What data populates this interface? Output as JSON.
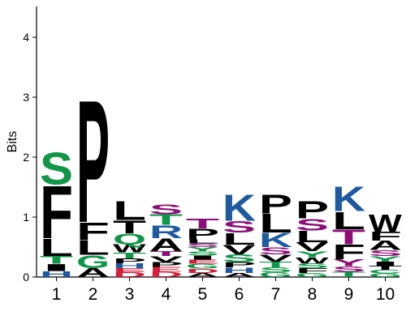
{
  "chart_data": {
    "type": "sequence-logo",
    "ylabel": "Bits",
    "ylim": [
      0,
      4.5
    ],
    "yticks": [
      "0",
      "1",
      "2",
      "3",
      "4"
    ],
    "grid": false,
    "colors": {
      "green": "#109648",
      "black": "#000000",
      "blue": "#1f5aa0",
      "purple": "#8e0e77",
      "red": "#d41e3c"
    },
    "positions": [
      {
        "label": "1",
        "letters": [
          {
            "char": "H",
            "height": 0.1,
            "color": "blue"
          },
          {
            "char": "I",
            "height": 0.12,
            "color": "black"
          },
          {
            "char": "T",
            "height": 0.13,
            "color": "green"
          },
          {
            "char": "L",
            "height": 0.3,
            "color": "black"
          },
          {
            "char": "F",
            "height": 0.9,
            "color": "black"
          },
          {
            "char": "S",
            "height": 0.55,
            "color": "green"
          }
        ]
      },
      {
        "label": "2",
        "letters": [
          {
            "char": "A",
            "height": 0.15,
            "color": "black"
          },
          {
            "char": "G",
            "height": 0.22,
            "color": "green"
          },
          {
            "char": "L",
            "height": 0.25,
            "color": "black"
          },
          {
            "char": "F",
            "height": 0.3,
            "color": "black"
          },
          {
            "char": "P",
            "height": 2.1,
            "color": "black"
          }
        ]
      },
      {
        "label": "3",
        "letters": [
          {
            "char": "D",
            "height": 0.08,
            "color": "red"
          },
          {
            "char": "E",
            "height": 0.07,
            "color": "red"
          },
          {
            "char": "H",
            "height": 0.08,
            "color": "blue"
          },
          {
            "char": "P",
            "height": 0.08,
            "color": "black"
          },
          {
            "char": "T",
            "height": 0.1,
            "color": "green"
          },
          {
            "char": "W",
            "height": 0.14,
            "color": "black"
          },
          {
            "char": "Q",
            "height": 0.18,
            "color": "green"
          },
          {
            "char": "T",
            "height": 0.22,
            "color": "black"
          },
          {
            "char": "L",
            "height": 0.32,
            "color": "black"
          }
        ]
      },
      {
        "label": "4",
        "letters": [
          {
            "char": "D",
            "height": 0.09,
            "color": "red"
          },
          {
            "char": "E",
            "height": 0.08,
            "color": "red"
          },
          {
            "char": "P",
            "height": 0.08,
            "color": "black"
          },
          {
            "char": "V",
            "height": 0.1,
            "color": "black"
          },
          {
            "char": "T",
            "height": 0.08,
            "color": "purple"
          },
          {
            "char": "A",
            "height": 0.22,
            "color": "black"
          },
          {
            "char": "R",
            "height": 0.22,
            "color": "blue"
          },
          {
            "char": "T",
            "height": 0.18,
            "color": "green"
          },
          {
            "char": "S",
            "height": 0.17,
            "color": "purple"
          }
        ]
      },
      {
        "label": "5",
        "letters": [
          {
            "char": "A",
            "height": 0.07,
            "color": "black"
          },
          {
            "char": "D",
            "height": 0.07,
            "color": "red"
          },
          {
            "char": "G",
            "height": 0.08,
            "color": "green"
          },
          {
            "char": "E",
            "height": 0.07,
            "color": "red"
          },
          {
            "char": "I",
            "height": 0.07,
            "color": "black"
          },
          {
            "char": "S",
            "height": 0.07,
            "color": "green"
          },
          {
            "char": "Y",
            "height": 0.07,
            "color": "green"
          },
          {
            "char": "S",
            "height": 0.06,
            "color": "purple"
          },
          {
            "char": "L",
            "height": 0.07,
            "color": "black"
          },
          {
            "char": "P",
            "height": 0.18,
            "color": "black"
          },
          {
            "char": "T",
            "height": 0.17,
            "color": "purple"
          }
        ]
      },
      {
        "label": "6",
        "letters": [
          {
            "char": "A",
            "height": 0.07,
            "color": "black"
          },
          {
            "char": "H",
            "height": 0.09,
            "color": "blue"
          },
          {
            "char": "P",
            "height": 0.09,
            "color": "black"
          },
          {
            "char": "S",
            "height": 0.13,
            "color": "green"
          },
          {
            "char": "V",
            "height": 0.16,
            "color": "black"
          },
          {
            "char": "L",
            "height": 0.2,
            "color": "black"
          },
          {
            "char": "S",
            "height": 0.2,
            "color": "purple"
          },
          {
            "char": "K",
            "height": 0.45,
            "color": "blue"
          }
        ]
      },
      {
        "label": "7",
        "letters": [
          {
            "char": "G",
            "height": 0.08,
            "color": "green"
          },
          {
            "char": "S",
            "height": 0.08,
            "color": "green"
          },
          {
            "char": "T",
            "height": 0.1,
            "color": "green"
          },
          {
            "char": "V",
            "height": 0.12,
            "color": "black"
          },
          {
            "char": "S",
            "height": 0.12,
            "color": "purple"
          },
          {
            "char": "K",
            "height": 0.24,
            "color": "blue"
          },
          {
            "char": "L",
            "height": 0.32,
            "color": "black"
          },
          {
            "char": "P",
            "height": 0.32,
            "color": "black"
          }
        ]
      },
      {
        "label": "8",
        "letters": [
          {
            "char": "G",
            "height": 0.07,
            "color": "green"
          },
          {
            "char": "F",
            "height": 0.08,
            "color": "black"
          },
          {
            "char": "S",
            "height": 0.08,
            "color": "green"
          },
          {
            "char": "W",
            "height": 0.1,
            "color": "black"
          },
          {
            "char": "Y",
            "height": 0.1,
            "color": "green"
          },
          {
            "char": "V",
            "height": 0.15,
            "color": "black"
          },
          {
            "char": "L",
            "height": 0.2,
            "color": "black"
          },
          {
            "char": "S",
            "height": 0.2,
            "color": "purple"
          },
          {
            "char": "P",
            "height": 0.3,
            "color": "black"
          }
        ]
      },
      {
        "label": "9",
        "letters": [
          {
            "char": "T",
            "height": 0.09,
            "color": "green"
          },
          {
            "char": "S",
            "height": 0.09,
            "color": "purple"
          },
          {
            "char": "Y",
            "height": 0.12,
            "color": "purple"
          },
          {
            "char": "F",
            "height": 0.25,
            "color": "black"
          },
          {
            "char": "T",
            "height": 0.25,
            "color": "purple"
          },
          {
            "char": "L",
            "height": 0.3,
            "color": "black"
          },
          {
            "char": "K",
            "height": 0.42,
            "color": "blue"
          }
        ]
      },
      {
        "label": "10",
        "letters": [
          {
            "char": "G",
            "height": 0.06,
            "color": "green"
          },
          {
            "char": "C",
            "height": 0.06,
            "color": "green"
          },
          {
            "char": "T",
            "height": 0.07,
            "color": "black"
          },
          {
            "char": "I",
            "height": 0.07,
            "color": "black"
          },
          {
            "char": "Y",
            "height": 0.09,
            "color": "green"
          },
          {
            "char": "S",
            "height": 0.1,
            "color": "purple"
          },
          {
            "char": "A",
            "height": 0.16,
            "color": "black"
          },
          {
            "char": "F",
            "height": 0.15,
            "color": "black"
          },
          {
            "char": "W",
            "height": 0.3,
            "color": "black"
          }
        ]
      }
    ]
  }
}
